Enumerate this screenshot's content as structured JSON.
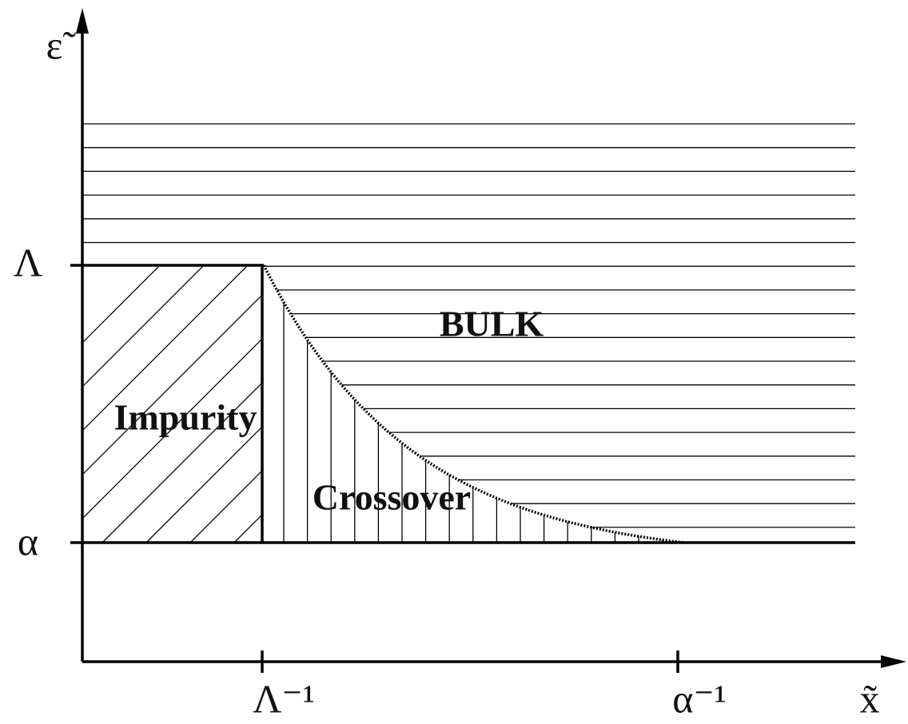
{
  "axes": {
    "y_label": "ε̃",
    "x_label": "x̃",
    "y_ticks": [
      "Λ",
      "α"
    ],
    "x_ticks": [
      "Λ⁻¹",
      "α⁻¹"
    ]
  },
  "regions": {
    "bulk": "BULK",
    "impurity": "Impurity",
    "crossover": "Crossover"
  }
}
